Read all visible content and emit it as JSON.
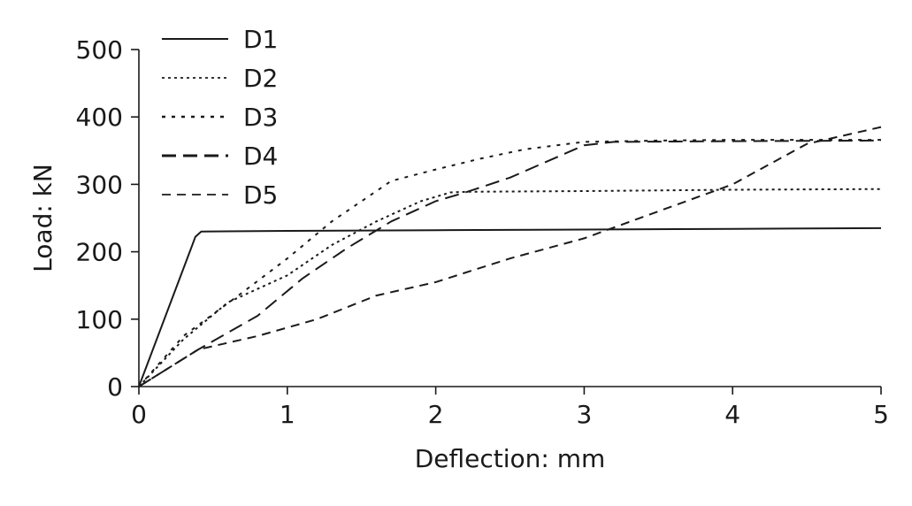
{
  "chart_data": {
    "type": "line",
    "title": "",
    "xlabel": "Deflection: mm",
    "ylabel": "Load: kN",
    "xlim": [
      0,
      5
    ],
    "ylim": [
      0,
      500
    ],
    "xticks": [
      0,
      1,
      2,
      3,
      4,
      5
    ],
    "yticks": [
      0,
      100,
      200,
      300,
      400,
      500
    ],
    "grid": false,
    "legend_position": "top-left",
    "series": [
      {
        "name": "D1",
        "style": "solid",
        "points": [
          [
            0,
            0
          ],
          [
            0.36,
            210
          ],
          [
            0.38,
            222
          ],
          [
            0.42,
            230
          ],
          [
            1.0,
            231
          ],
          [
            2.0,
            232
          ],
          [
            3.0,
            233
          ],
          [
            4.0,
            234
          ],
          [
            5.0,
            235
          ]
        ]
      },
      {
        "name": "D2",
        "style": "dotted-fine",
        "points": [
          [
            0,
            0
          ],
          [
            0.3,
            70
          ],
          [
            0.6,
            125
          ],
          [
            1.0,
            165
          ],
          [
            1.3,
            210
          ],
          [
            1.6,
            245
          ],
          [
            1.9,
            275
          ],
          [
            2.1,
            288
          ],
          [
            2.2,
            289
          ],
          [
            3.0,
            290
          ],
          [
            4.0,
            292
          ],
          [
            5.0,
            293
          ]
        ]
      },
      {
        "name": "D3",
        "style": "dotted",
        "points": [
          [
            0,
            0
          ],
          [
            0.3,
            75
          ],
          [
            0.7,
            140
          ],
          [
            1.0,
            190
          ],
          [
            1.3,
            245
          ],
          [
            1.7,
            305
          ],
          [
            2.0,
            322
          ],
          [
            2.3,
            338
          ],
          [
            2.6,
            352
          ],
          [
            3.0,
            363
          ],
          [
            3.5,
            365
          ],
          [
            4.0,
            366
          ],
          [
            5.0,
            366
          ]
        ]
      },
      {
        "name": "D4",
        "style": "dashed",
        "points": [
          [
            0,
            0
          ],
          [
            0.4,
            55
          ],
          [
            0.8,
            105
          ],
          [
            1.1,
            160
          ],
          [
            1.4,
            205
          ],
          [
            1.7,
            245
          ],
          [
            2.0,
            275
          ],
          [
            2.2,
            288
          ],
          [
            2.5,
            310
          ],
          [
            3.0,
            358
          ],
          [
            3.2,
            363
          ],
          [
            4.0,
            364
          ],
          [
            5.0,
            365
          ]
        ]
      },
      {
        "name": "D5",
        "style": "dashed-fine",
        "points": [
          [
            0,
            0
          ],
          [
            0.4,
            55
          ],
          [
            0.8,
            75
          ],
          [
            1.2,
            100
          ],
          [
            1.6,
            135
          ],
          [
            2.0,
            155
          ],
          [
            2.5,
            190
          ],
          [
            3.0,
            220
          ],
          [
            3.5,
            260
          ],
          [
            4.0,
            300
          ],
          [
            4.5,
            360
          ],
          [
            5.0,
            385
          ]
        ]
      }
    ]
  }
}
